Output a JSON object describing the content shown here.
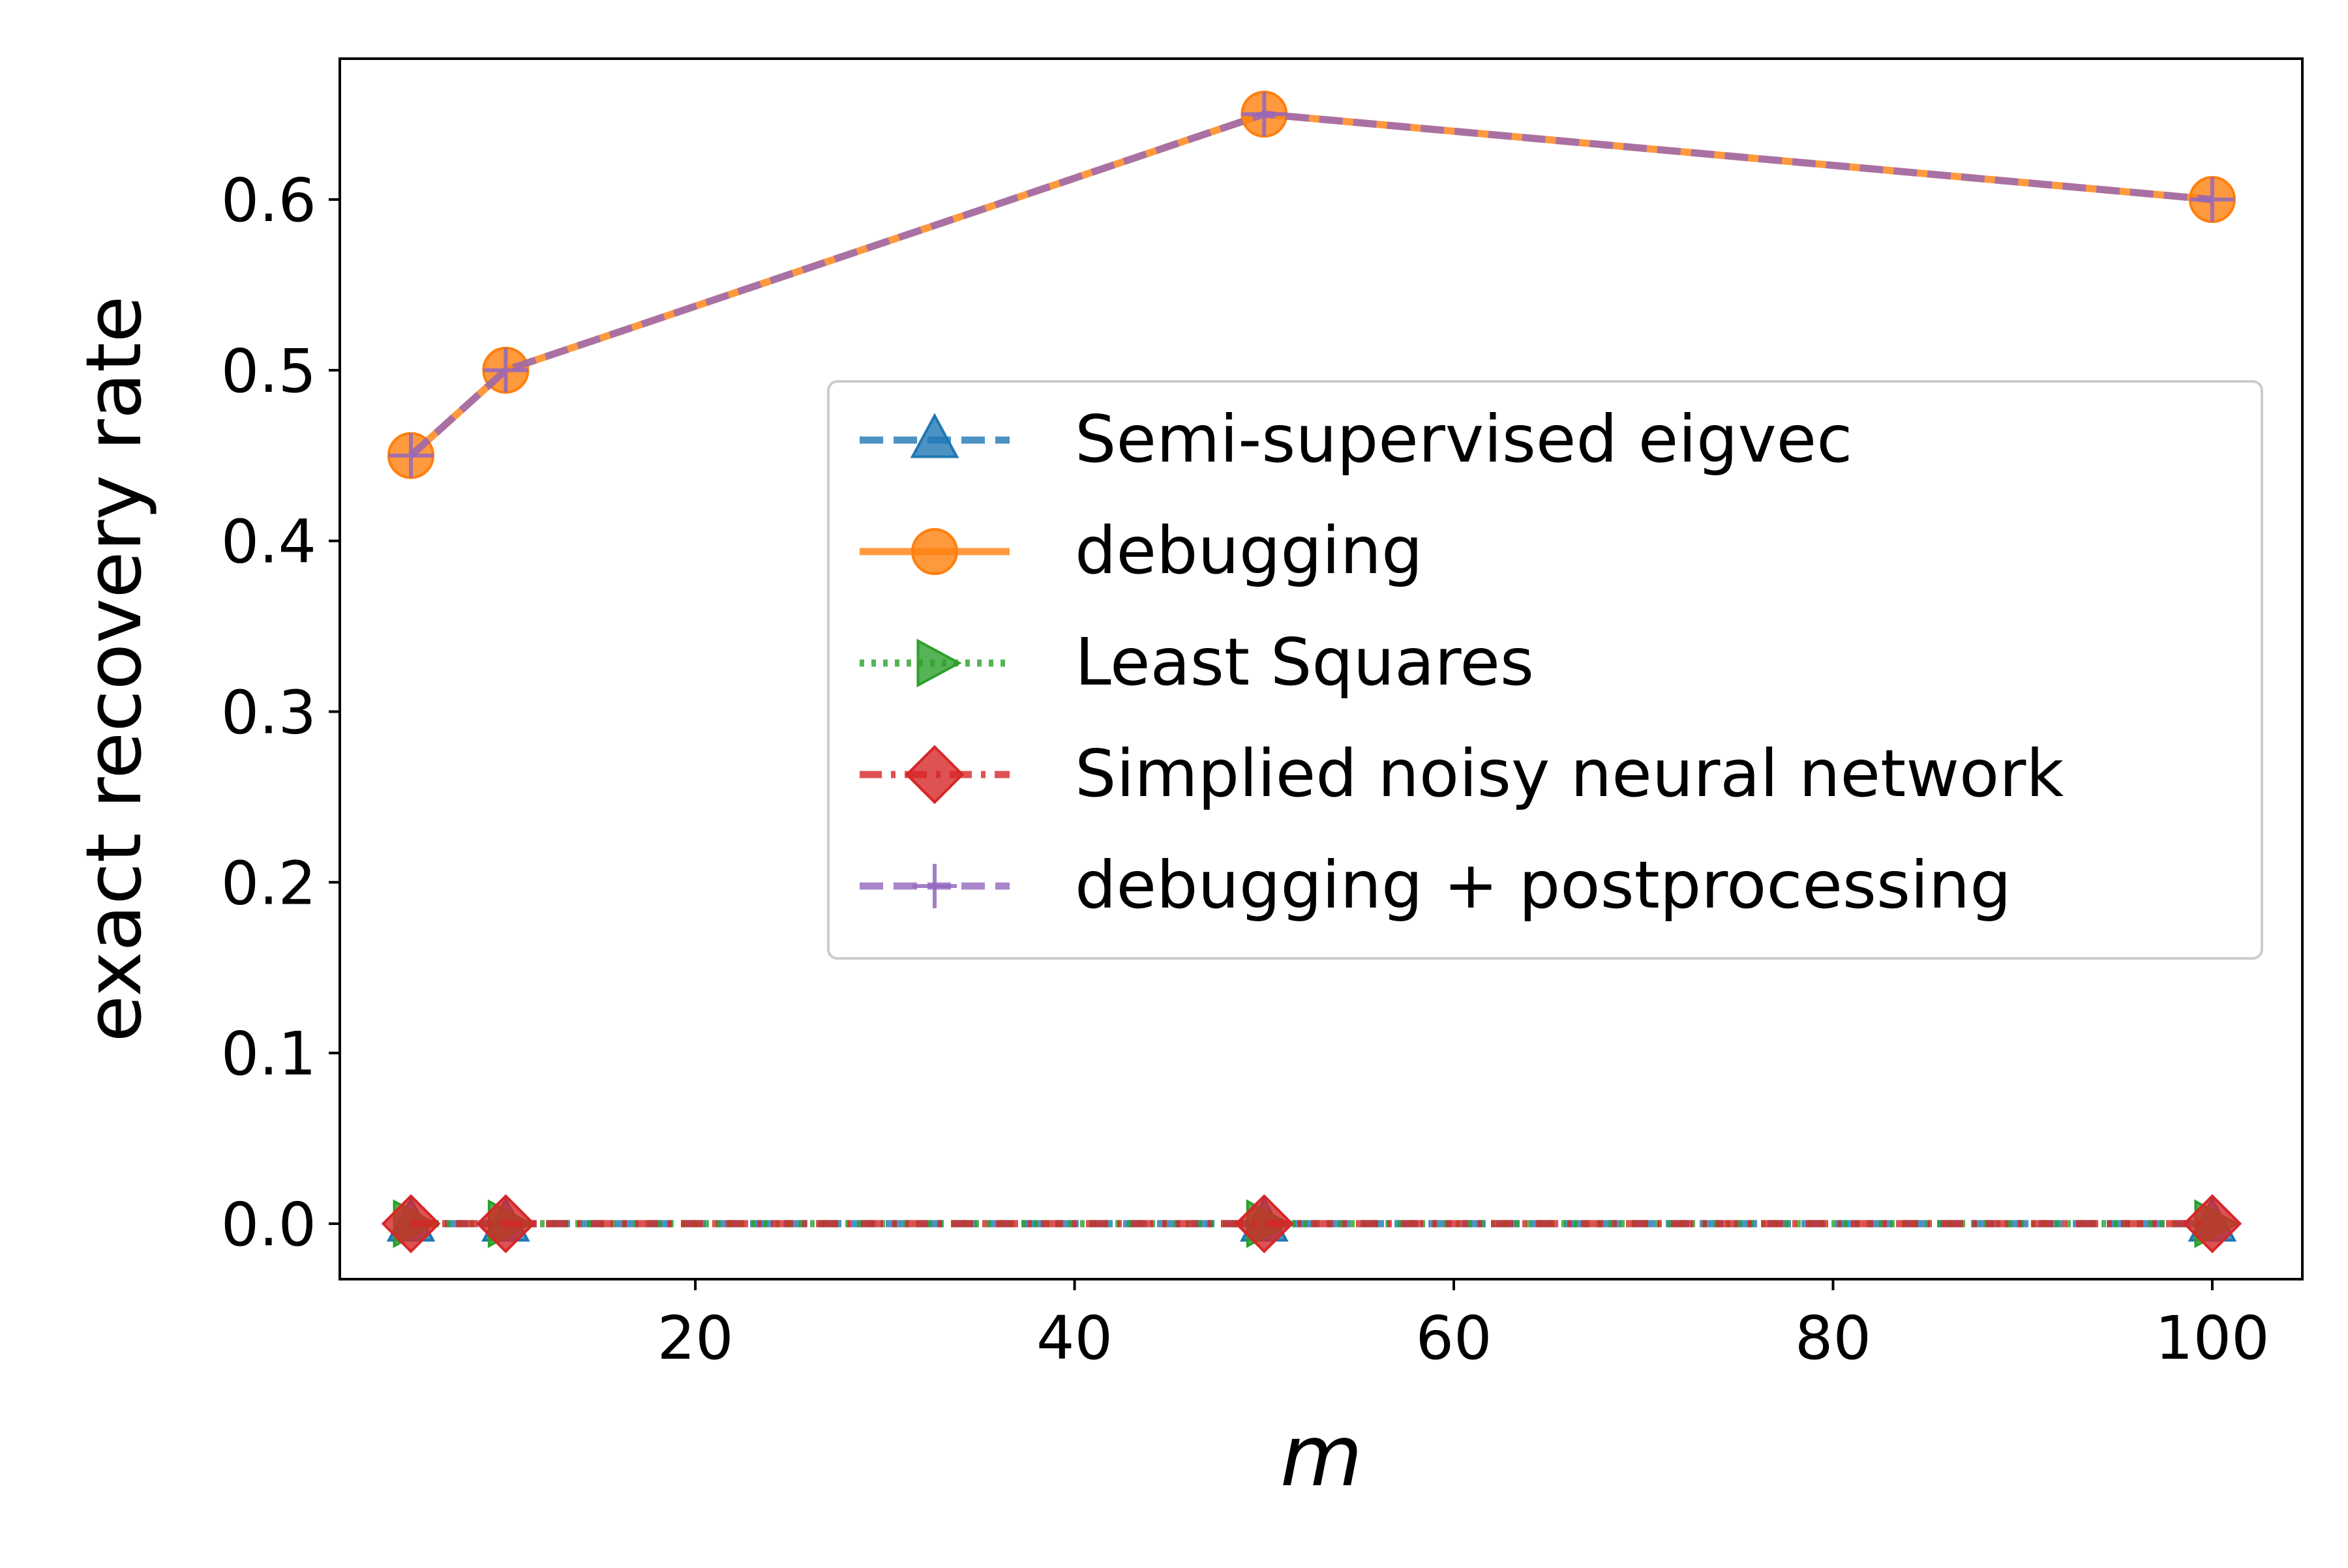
{
  "chart_data": {
    "type": "line",
    "xlabel": "m",
    "ylabel": "exact recovery rate",
    "xlim": [
      1.25,
      104.75
    ],
    "ylim": [
      -0.0325,
      0.6825
    ],
    "xticks": [
      20,
      40,
      60,
      80,
      100
    ],
    "xtick_labels": [
      "20",
      "40",
      "60",
      "80",
      "100"
    ],
    "yticks": [
      0.0,
      0.1,
      0.2,
      0.3,
      0.4,
      0.5,
      0.6
    ],
    "ytick_labels": [
      "0.0",
      "0.1",
      "0.2",
      "0.3",
      "0.4",
      "0.5",
      "0.6"
    ],
    "grid": false,
    "legend_position": "center-right",
    "x": [
      5,
      10,
      50,
      100
    ],
    "series": [
      {
        "name": "Semi-supervised eigvec",
        "values": [
          0,
          0,
          0,
          0
        ],
        "color": "#1f77b4",
        "marker": "triangle-up",
        "linestyle": "dashed"
      },
      {
        "name": "debugging",
        "values": [
          0.45,
          0.5,
          0.65,
          0.6
        ],
        "color": "#ff7f0e",
        "marker": "circle",
        "linestyle": "solid"
      },
      {
        "name": "Least Squares",
        "values": [
          0,
          0,
          0,
          0
        ],
        "color": "#2ca02c",
        "marker": "triangle-right",
        "linestyle": "dotted"
      },
      {
        "name": "Simplied noisy neural network",
        "values": [
          0,
          0,
          0,
          0
        ],
        "color": "#d62728",
        "marker": "diamond",
        "linestyle": "dashdot"
      },
      {
        "name": "debugging + postprocessing",
        "values": [
          0.45,
          0.5,
          0.65,
          0.6
        ],
        "color": "#9467bd",
        "marker": "plus",
        "linestyle": "dashed"
      }
    ]
  }
}
